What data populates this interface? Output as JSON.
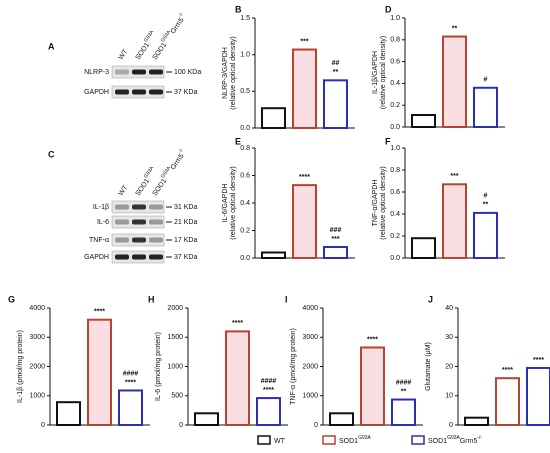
{
  "legend": [
    {
      "text": "WT",
      "color": "#111111",
      "fill": "#ffffff"
    },
    {
      "text": "SOD1",
      "sup": "G93A",
      "color": "#b8432e",
      "fill": "#ffffff"
    },
    {
      "text": "SOD1",
      "sup": "G93A",
      "text2": "Grm5",
      "sup2": "-/-",
      "color": "#2b2fb8",
      "fill": "#ffffff"
    }
  ],
  "blots": [
    {
      "panel": "A",
      "columns": [
        {
          "text": "WT"
        },
        {
          "text": "SOD1",
          "sup": "G93A"
        },
        {
          "text": "SOD1",
          "sup": "G93A",
          "text2": "Grm5",
          "sup2": "-/-"
        }
      ],
      "rows": [
        {
          "label": "NLRP-3",
          "size": "100 KDa"
        },
        {
          "label": "GAPDH",
          "size": "37 KDa"
        }
      ]
    },
    {
      "panel": "C",
      "columns": [
        {
          "text": "WT"
        },
        {
          "text": "SOD1",
          "sup": "G93A"
        },
        {
          "text": "SOD1",
          "sup": "G93A",
          "text2": "Grm5",
          "sup2": "-/-"
        }
      ],
      "rows": [
        {
          "label": "IL-1β",
          "size": "31 KDa"
        },
        {
          "label": "IL-6",
          "size": "21 KDa"
        },
        {
          "label": "TNF-α",
          "size": "17 KDa"
        },
        {
          "label": "GAPDH",
          "size": "37 KDa"
        }
      ]
    }
  ],
  "chart_data": [
    {
      "type": "bar",
      "panel": "B",
      "ylabel": [
        "NLRP-3/GAPDH",
        "(relative optical density)"
      ],
      "values": [
        0.27,
        1.07,
        0.65
      ],
      "colors": [
        "#111111",
        "#b8432e",
        "#2b2fb8"
      ],
      "fills": [
        "#ffffff",
        "#f9dfe4",
        "#ffffff"
      ],
      "annotations": [
        [],
        [
          "***"
        ],
        [
          "##",
          "**"
        ]
      ],
      "ylim": [
        0,
        1.5
      ],
      "yticks": [
        {
          "value": 0,
          "label": "0.0"
        },
        {
          "value": 0.5,
          "label": "0.5"
        },
        {
          "value": 1,
          "label": "1.0"
        },
        {
          "value": 1.5,
          "label": "1.5"
        }
      ]
    },
    {
      "type": "bar",
      "panel": "D",
      "ylabel": [
        "IL-1β/GAPDH",
        "(relative optical density)"
      ],
      "values": [
        0.11,
        0.83,
        0.36
      ],
      "colors": [
        "#111111",
        "#b8432e",
        "#2b2fb8"
      ],
      "fills": [
        "#ffffff",
        "#f9dfe4",
        "#ffffff"
      ],
      "annotations": [
        [],
        [
          "**"
        ],
        [
          "#"
        ]
      ],
      "ylim": [
        0,
        1
      ],
      "yticks": [
        {
          "value": 0,
          "label": "0.0"
        },
        {
          "value": 0.2,
          "label": "0.2"
        },
        {
          "value": 0.4,
          "label": "0.4"
        },
        {
          "value": 0.6,
          "label": "0.6"
        },
        {
          "value": 0.8,
          "label": "0.8"
        },
        {
          "value": 1,
          "label": "1.0"
        }
      ]
    },
    {
      "type": "bar",
      "panel": "E",
      "ylabel": [
        "IL-6/GAPDH",
        "(relative optical density)"
      ],
      "values": [
        0.04,
        0.53,
        0.08
      ],
      "colors": [
        "#111111",
        "#b8432e",
        "#2b2fb8"
      ],
      "fills": [
        "#ffffff",
        "#f9dfe4",
        "#ffffff"
      ],
      "annotations": [
        [],
        [
          "****"
        ],
        [
          "###",
          "***"
        ]
      ],
      "ylim": [
        0,
        0.8
      ],
      "yticks": [
        {
          "value": 0,
          "label": "0.0"
        },
        {
          "value": 0.2,
          "label": "0.2"
        },
        {
          "value": 0.4,
          "label": "0.4"
        },
        {
          "value": 0.6,
          "label": "0.6"
        },
        {
          "value": 0.8,
          "label": "0.8"
        }
      ]
    },
    {
      "type": "bar",
      "panel": "F",
      "ylabel": [
        "TNF-α/GAPDH",
        "(relative optical density)"
      ],
      "values": [
        0.18,
        0.67,
        0.41
      ],
      "colors": [
        "#111111",
        "#b8432e",
        "#2b2fb8"
      ],
      "fills": [
        "#ffffff",
        "#f9dfe4",
        "#ffffff"
      ],
      "annotations": [
        [],
        [
          "***"
        ],
        [
          "#",
          "**"
        ]
      ],
      "ylim": [
        0,
        1
      ],
      "yticks": [
        {
          "value": 0,
          "label": "0.0"
        },
        {
          "value": 0.2,
          "label": "0.2"
        },
        {
          "value": 0.4,
          "label": "0.4"
        },
        {
          "value": 0.6,
          "label": "0.6"
        },
        {
          "value": 0.8,
          "label": "0.8"
        },
        {
          "value": 1,
          "label": "1.0"
        }
      ]
    },
    {
      "type": "bar",
      "panel": "G",
      "ylabel": [
        "IL-1β (pmol/mg protein)"
      ],
      "values": [
        780,
        3600,
        1180
      ],
      "colors": [
        "#111111",
        "#b8432e",
        "#2b2fb8"
      ],
      "fills": [
        "#ffffff",
        "#f9dfe4",
        "#ffffff"
      ],
      "annotations": [
        [],
        [
          "****"
        ],
        [
          "####",
          "****"
        ]
      ],
      "ylim": [
        0,
        4000
      ],
      "yticks": [
        0,
        1000,
        2000,
        3000,
        4000
      ]
    },
    {
      "type": "bar",
      "panel": "H",
      "ylabel": [
        "IL-6 (pmol/mg protein)"
      ],
      "values": [
        200,
        1600,
        460
      ],
      "colors": [
        "#111111",
        "#b8432e",
        "#2b2fb8"
      ],
      "fills": [
        "#ffffff",
        "#f9dfe4",
        "#ffffff"
      ],
      "annotations": [
        [],
        [
          "****"
        ],
        [
          "####",
          "****"
        ]
      ],
      "ylim": [
        0,
        2000
      ],
      "yticks": [
        0,
        500,
        1000,
        1500,
        2000
      ]
    },
    {
      "type": "bar",
      "panel": "I",
      "ylabel": [
        "TNF-α (pmol/mg protein)"
      ],
      "values": [
        400,
        2650,
        870
      ],
      "colors": [
        "#111111",
        "#b8432e",
        "#2b2fb8"
      ],
      "fills": [
        "#ffffff",
        "#f9dfe4",
        "#ffffff"
      ],
      "annotations": [
        [],
        [
          "****"
        ],
        [
          "####",
          "**"
        ]
      ],
      "ylim": [
        0,
        4000
      ],
      "yticks": [
        0,
        1000,
        2000,
        3000,
        4000
      ]
    },
    {
      "type": "bar",
      "panel": "J",
      "ylabel": [
        "Glutamate (μM)"
      ],
      "values": [
        2.5,
        16,
        19.5
      ],
      "colors": [
        "#111111",
        "#b8432e",
        "#2b2fb8"
      ],
      "fills": [
        "#ffffff",
        "#ffffff",
        "#ffffff"
      ],
      "annotations": [
        [],
        [
          "****"
        ],
        [
          "****"
        ]
      ],
      "ylim": [
        0,
        40
      ],
      "yticks": [
        0,
        10,
        20,
        30,
        40
      ]
    }
  ]
}
